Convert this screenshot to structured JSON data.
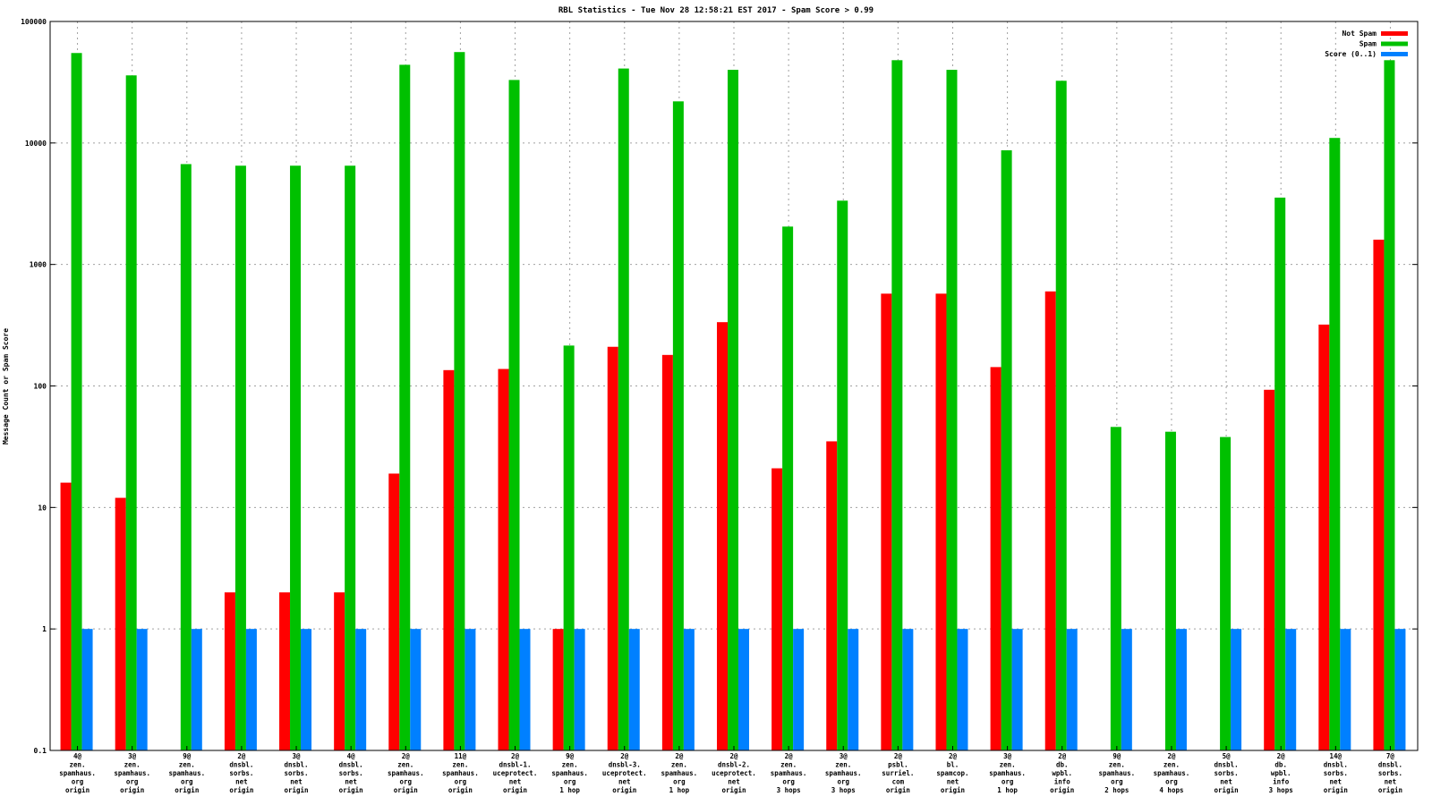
{
  "chart_data": {
    "type": "bar",
    "title": "RBL Statistics - Tue Nov 28 12:58:21 EST 2017 - Spam Score > 0.99",
    "xlabel": "",
    "ylabel": "Message Count or Spam Score",
    "yscale": "log",
    "ylim": [
      0.1,
      100000
    ],
    "yticks": [
      {
        "value": 0.1,
        "label": "0.1"
      },
      {
        "value": 1,
        "label": "1"
      },
      {
        "value": 10,
        "label": "10"
      },
      {
        "value": 100,
        "label": "100"
      },
      {
        "value": 1000,
        "label": "1000"
      },
      {
        "value": 10000,
        "label": "10000"
      },
      {
        "value": 100000,
        "label": "100000"
      }
    ],
    "grid": true,
    "legend_position": "top-right",
    "categories": [
      [
        "4@",
        "zen.",
        "spamhaus.",
        "org",
        "origin"
      ],
      [
        "3@",
        "zen.",
        "spamhaus.",
        "org",
        "origin"
      ],
      [
        "9@",
        "zen.",
        "spamhaus.",
        "org",
        "origin"
      ],
      [
        "2@",
        "dnsbl.",
        "sorbs.",
        "net",
        "origin"
      ],
      [
        "3@",
        "dnsbl.",
        "sorbs.",
        "net",
        "origin"
      ],
      [
        "4@",
        "dnsbl.",
        "sorbs.",
        "net",
        "origin"
      ],
      [
        "2@",
        "zen.",
        "spamhaus.",
        "org",
        "origin"
      ],
      [
        "11@",
        "zen.",
        "spamhaus.",
        "org",
        "origin"
      ],
      [
        "2@",
        "dnsbl-1.",
        "uceprotect.",
        "net",
        "origin"
      ],
      [
        "9@",
        "zen.",
        "spamhaus.",
        "org",
        "1 hop"
      ],
      [
        "2@",
        "dnsbl-3.",
        "uceprotect.",
        "net",
        "origin"
      ],
      [
        "2@",
        "zen.",
        "spamhaus.",
        "org",
        "1 hop"
      ],
      [
        "2@",
        "dnsbl-2.",
        "uceprotect.",
        "net",
        "origin"
      ],
      [
        "2@",
        "zen.",
        "spamhaus.",
        "org",
        "3 hops"
      ],
      [
        "3@",
        "zen.",
        "spamhaus.",
        "org",
        "3 hops"
      ],
      [
        "2@",
        "psbl.",
        "surriel.",
        "com",
        "origin"
      ],
      [
        "2@",
        "bl.",
        "spamcop.",
        "net",
        "origin"
      ],
      [
        "3@",
        "zen.",
        "spamhaus.",
        "org",
        "1 hop"
      ],
      [
        "2@",
        "db.",
        "wpbl.",
        "info",
        "origin"
      ],
      [
        "9@",
        "zen.",
        "spamhaus.",
        "org",
        "2 hops"
      ],
      [
        "2@",
        "zen.",
        "spamhaus.",
        "org",
        "4 hops"
      ],
      [
        "5@",
        "dnsbl.",
        "sorbs.",
        "net",
        "origin"
      ],
      [
        "2@",
        "db.",
        "wpbl.",
        "info",
        "3 hops"
      ],
      [
        "14@",
        "dnsbl.",
        "sorbs.",
        "net",
        "origin"
      ],
      [
        "7@",
        "dnsbl.",
        "sorbs.",
        "net",
        "origin"
      ]
    ],
    "series": [
      {
        "name": "Not Spam",
        "color": "#ff0000",
        "values": [
          16,
          12,
          null,
          2,
          2,
          2,
          19,
          135,
          138,
          1,
          210,
          180,
          335,
          21,
          35,
          575,
          575,
          143,
          600,
          null,
          null,
          null,
          93,
          320,
          1600
        ]
      },
      {
        "name": "Spam",
        "color": "#00c000",
        "values": [
          55000,
          36000,
          6700,
          6500,
          6500,
          6500,
          44000,
          56000,
          33000,
          215,
          41000,
          22000,
          40000,
          2050,
          3350,
          48000,
          40000,
          8700,
          32500,
          46,
          42,
          38,
          3550,
          11000,
          48000
        ]
      },
      {
        "name": "Score (0..1)",
        "color": "#0080ff",
        "values": [
          1,
          1,
          1,
          1,
          1,
          1,
          1,
          1,
          1,
          1,
          1,
          1,
          1,
          1,
          1,
          1,
          1,
          1,
          1,
          1,
          1,
          1,
          1,
          1,
          1
        ]
      }
    ]
  }
}
